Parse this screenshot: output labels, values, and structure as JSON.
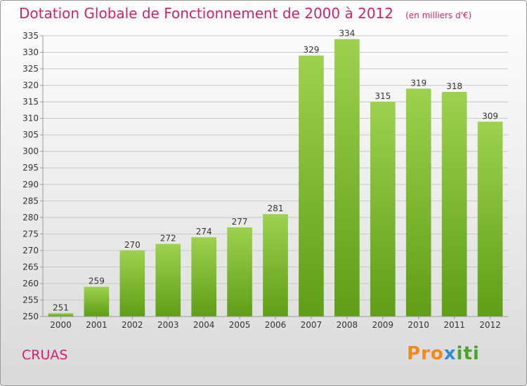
{
  "title": "Dotation Globale de Fonctionnement de 2000 à 2012",
  "unit": "(en milliers d'€)",
  "commune": "CRUAS",
  "logo_text": "Proxiti",
  "colors": {
    "bar_top": "#9dd14e",
    "bar_bottom": "#5f9e16",
    "title": "#d4206a"
  },
  "chart_data": {
    "type": "bar",
    "title": "Dotation Globale de Fonctionnement de 2000 à 2012",
    "xlabel": "",
    "ylabel": "",
    "categories": [
      "2000",
      "2001",
      "2002",
      "2003",
      "2004",
      "2005",
      "2006",
      "2007",
      "2008",
      "2009",
      "2010",
      "2011",
      "2012"
    ],
    "values": [
      251,
      259,
      270,
      272,
      274,
      277,
      281,
      329,
      334,
      315,
      319,
      318,
      309
    ],
    "ylim": [
      250,
      335
    ],
    "yticks": [
      250,
      255,
      260,
      265,
      270,
      275,
      280,
      285,
      290,
      295,
      300,
      305,
      310,
      315,
      320,
      325,
      330,
      335
    ],
    "grid": true,
    "data_labels": true
  }
}
